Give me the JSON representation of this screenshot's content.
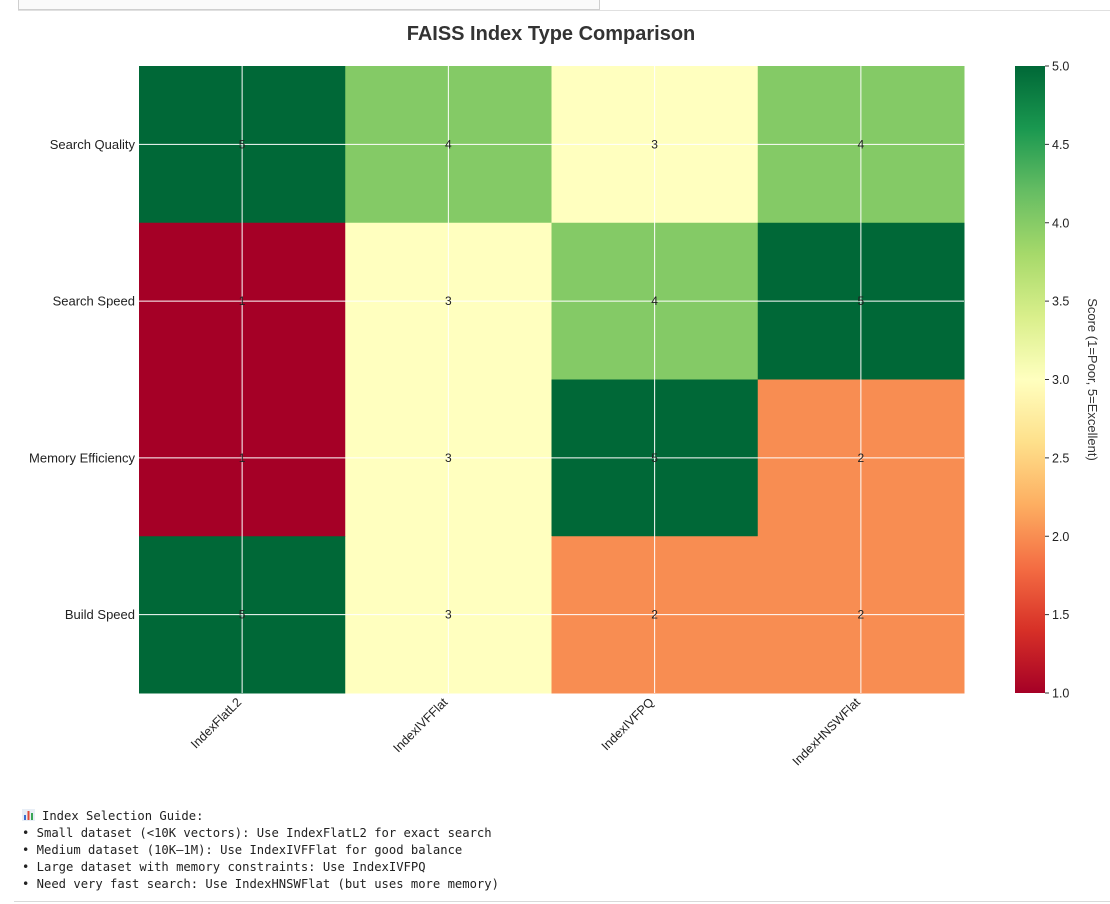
{
  "chart_data": {
    "type": "heatmap",
    "title": "FAISS Index Type Comparison",
    "rows": [
      "Search Quality",
      "Search Speed",
      "Memory Efficiency",
      "Build Speed"
    ],
    "columns": [
      "IndexFlatL2",
      "IndexIVFFlat",
      "IndexIVFPQ",
      "IndexHNSWFlat"
    ],
    "values": [
      [
        5,
        4,
        3,
        4
      ],
      [
        1,
        3,
        4,
        5
      ],
      [
        1,
        3,
        5,
        2
      ],
      [
        5,
        3,
        2,
        2
      ]
    ],
    "colormap": "RdYlGn",
    "vmin": 1.0,
    "vmax": 5.0,
    "grid": true,
    "colorbar": {
      "label": "Score (1=Poor, 5=Excellent)",
      "ticks": [
        "1.0",
        "1.5",
        "2.0",
        "2.5",
        "3.0",
        "3.5",
        "4.0",
        "4.5",
        "5.0"
      ]
    },
    "colors": {
      "1": "#a50026",
      "2": "#f88d52",
      "3": "#ffffbf",
      "4": "#84ca66",
      "5": "#006837"
    }
  },
  "output": {
    "icon": "bar-chart-icon",
    "heading": "Index Selection Guide:",
    "lines": [
      "• Small dataset (<10K vectors): Use IndexFlatL2 for exact search",
      "• Medium dataset (10K–1M): Use IndexIVFFlat for good balance",
      "• Large dataset with memory constraints: Use IndexIVFPQ",
      "• Need very fast search: Use IndexHNSWFlat (but uses more memory)"
    ]
  }
}
